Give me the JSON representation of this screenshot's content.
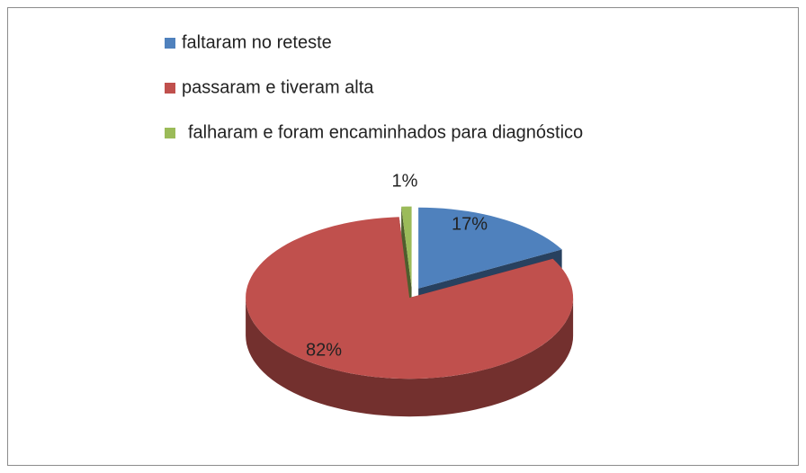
{
  "chart_data": {
    "type": "pie3d",
    "categories": [
      "faltaram no reteste",
      "passaram e tiveram alta",
      "falharam e foram encaminhados para diagnóstico"
    ],
    "values": [
      17,
      82,
      1
    ],
    "value_labels": [
      "17%",
      "82%",
      "1%"
    ],
    "colors": [
      "#4f81bd",
      "#c0504d",
      "#9bbb59"
    ],
    "exploded": true,
    "legend": "top"
  }
}
